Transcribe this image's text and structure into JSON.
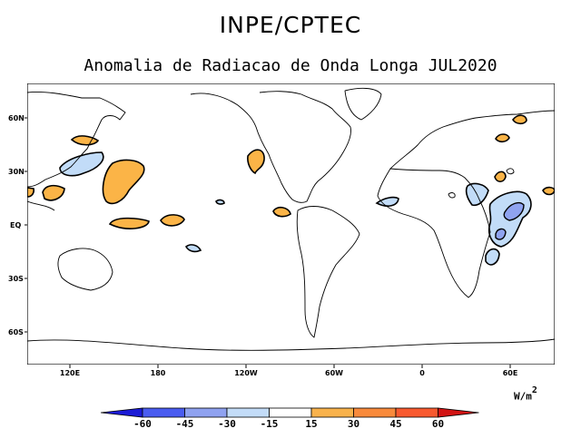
{
  "header": {
    "organization": "INPE/CPTEC",
    "title": "Anomalia de Radiacao de Onda Longa JUL2020"
  },
  "map": {
    "lat_labels": [
      "60N",
      "30N",
      "EQ",
      "30S",
      "60S"
    ],
    "lon_labels": [
      "120E",
      "180",
      "120W",
      "60W",
      "0",
      "60E"
    ]
  },
  "colorbar": {
    "units": "W/m",
    "units_exponent": "2",
    "levels": [
      "-60",
      "-45",
      "-30",
      "-15",
      "15",
      "30",
      "45",
      "60"
    ],
    "colors": [
      "#1b1bd6",
      "#4a5cf0",
      "#8fa2f0",
      "#c3dcf8",
      "#ffffff",
      "#f8b24c",
      "#f88a3c",
      "#f85a30",
      "#d21414"
    ]
  },
  "anomaly_colors": {
    "positive_light": "#fbb447",
    "negative_light": "#c2dcf8",
    "negative_medium": "#8fa3f0"
  }
}
